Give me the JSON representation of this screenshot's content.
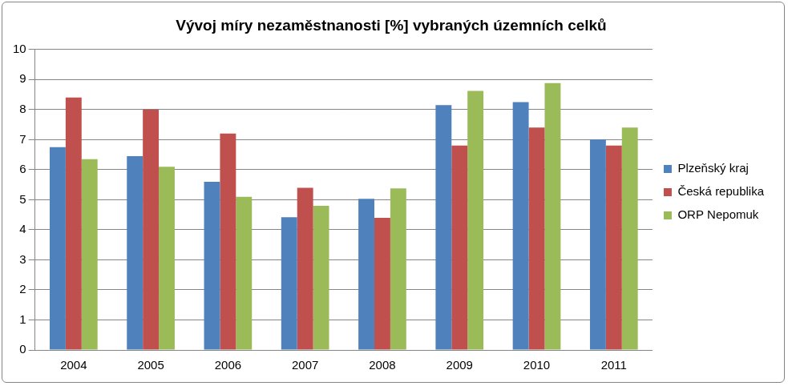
{
  "chart_data": {
    "type": "bar",
    "title": "Vývoj míry nezaměstnanosti [%] vybraných územních celků",
    "categories": [
      "2004",
      "2005",
      "2006",
      "2007",
      "2008",
      "2009",
      "2010",
      "2011"
    ],
    "series": [
      {
        "name": "Plzeňský kraj",
        "color": "#4f81bd",
        "values": [
          6.75,
          6.45,
          5.6,
          4.42,
          5.03,
          8.15,
          8.25,
          7.0
        ]
      },
      {
        "name": "Česká republika",
        "color": "#c0504d",
        "values": [
          8.4,
          8.0,
          7.2,
          5.4,
          4.4,
          6.8,
          7.4,
          6.8
        ]
      },
      {
        "name": "ORP Nepomuk",
        "color": "#9bbb59",
        "values": [
          6.35,
          6.1,
          5.1,
          4.8,
          5.38,
          8.62,
          8.88,
          7.4
        ]
      }
    ],
    "ylim": [
      0,
      10
    ],
    "yticks": [
      0,
      1,
      2,
      3,
      4,
      5,
      6,
      7,
      8,
      9,
      10
    ],
    "grid": true,
    "legend": "right"
  }
}
